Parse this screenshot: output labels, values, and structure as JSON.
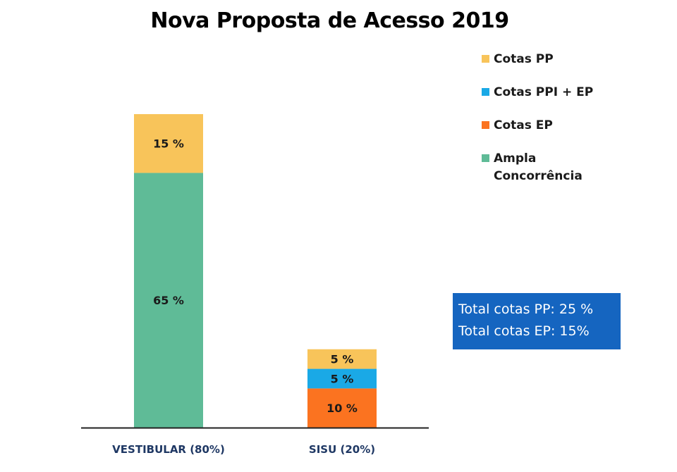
{
  "chart_data": {
    "type": "bar",
    "stacked": true,
    "title": "Nova Proposta de Acesso 2019",
    "categories": [
      "VESTIBULAR (80%)",
      "SISU (20%)"
    ],
    "series": [
      {
        "name": "Ampla Concorrência",
        "color": "#5fbb97",
        "values": [
          65,
          0
        ],
        "labels": [
          "65 %",
          ""
        ]
      },
      {
        "name": "Cotas EP",
        "color": "#fb7320",
        "values": [
          0,
          10
        ],
        "labels": [
          "",
          "10 %"
        ]
      },
      {
        "name": "Cotas PPI + EP",
        "color": "#1aa9e6",
        "values": [
          0,
          5
        ],
        "labels": [
          "",
          "5 %"
        ]
      },
      {
        "name": "Cotas PP",
        "color": "#f8c45a",
        "values": [
          15,
          5
        ],
        "labels": [
          "15 %",
          "5 %"
        ]
      }
    ],
    "legend_order": [
      "Cotas PP",
      "Cotas PPI + EP",
      "Cotas EP",
      "Ampla Concorrência"
    ],
    "legend_position": "right",
    "ylim": [
      0,
      80
    ],
    "grid": false
  },
  "totals_box": {
    "line1": "Total cotas PP: 25 %",
    "line2": "Total cotas EP: 15%",
    "color": "#1565c0"
  }
}
